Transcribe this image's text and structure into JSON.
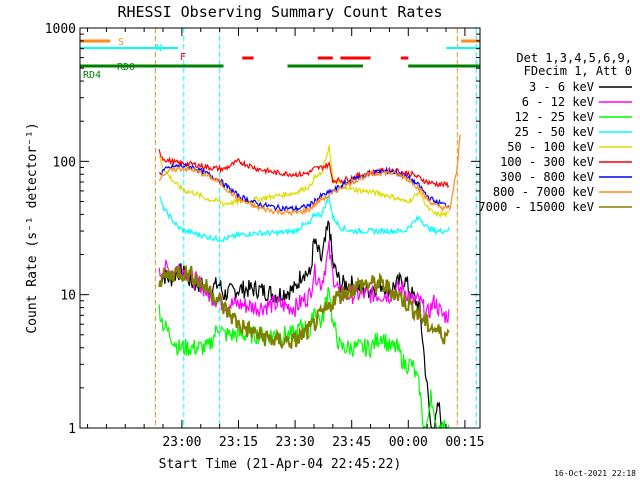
{
  "chart_data": {
    "type": "line",
    "title": "RHESSI Observing Summary Count Rates",
    "xlabel": "Start Time (21-Apr-04 22:45:22)",
    "ylabel": "Count Rate (s⁻¹ detector⁻¹)",
    "yscale": "log",
    "ylim": [
      1,
      1000
    ],
    "xlim_minutes": [
      -12,
      94
    ],
    "xticks": [
      {
        "t": 15,
        "label": "23:00"
      },
      {
        "t": 30,
        "label": "23:15"
      },
      {
        "t": 45,
        "label": "23:30"
      },
      {
        "t": 60,
        "label": "23:45"
      },
      {
        "t": 75,
        "label": "00:00"
      },
      {
        "t": 90,
        "label": "00:15"
      }
    ],
    "yticks": [
      {
        "v": 1,
        "label": "1"
      },
      {
        "v": 10,
        "label": "10"
      },
      {
        "v": 100,
        "label": "100"
      },
      {
        "v": 1000,
        "label": "1000"
      }
    ],
    "legend_header": [
      "Det 1,3,4,5,6,9,",
      "FDecim 1, Att 0"
    ],
    "legend_position": "right",
    "timestamp": "16-Oct-2021 22:18",
    "flag_bars": [
      {
        "label": "S",
        "color": "#ff8c1a",
        "segments": [
          [
            -12,
            -4
          ],
          [
            89,
            94
          ]
        ]
      },
      {
        "label": "N",
        "color": "#00ffff",
        "segments": [
          [
            -12,
            14
          ],
          [
            85,
            94
          ]
        ]
      },
      {
        "label": "F",
        "color": "#ff0000",
        "segments": [
          [
            31,
            34
          ],
          [
            51,
            55
          ],
          [
            57,
            65
          ],
          [
            73,
            75
          ]
        ]
      },
      {
        "label": "RD0",
        "color": "#008000",
        "segments": [
          [
            -12,
            26
          ],
          [
            43,
            63
          ],
          [
            75,
            94
          ]
        ]
      },
      {
        "label": "RD4",
        "color": "#008000",
        "segments": [
          [
            -12,
            26
          ],
          [
            43,
            63
          ],
          [
            75,
            94
          ]
        ]
      }
    ],
    "vlines": [
      {
        "t": 8,
        "color": "#ff8c1a"
      },
      {
        "t": 15.5,
        "color": "#00ffff"
      },
      {
        "t": 25,
        "color": "#00ffff"
      },
      {
        "t": 88,
        "color": "#ff8c1a"
      },
      {
        "t": 93,
        "color": "#00ffff"
      }
    ],
    "series": [
      {
        "name": "3 - 6 keV",
        "color": "#000000",
        "t": [
          -12,
          8,
          9,
          10,
          12,
          14,
          16,
          18,
          20,
          22,
          25,
          26,
          30,
          35,
          40,
          45,
          47,
          49,
          50,
          52,
          54,
          55,
          57,
          60,
          63,
          65,
          68,
          70,
          72,
          74,
          76,
          78,
          79,
          80,
          81,
          82,
          83,
          84,
          86,
          88
        ],
        "values": [
          null,
          null,
          12,
          14,
          13,
          15,
          14,
          12,
          12,
          11,
          12,
          10,
          11,
          11,
          10,
          11,
          15,
          14,
          25,
          18,
          35,
          17,
          12,
          12,
          11,
          11,
          12,
          11,
          12,
          13,
          10,
          8,
          4,
          2,
          1,
          1,
          1.5,
          1,
          null,
          null
        ]
      },
      {
        "name": "6 - 12 keV",
        "color": "#ff00ff",
        "t": [
          -12,
          8,
          9,
          10,
          12,
          14,
          16,
          18,
          20,
          22,
          25,
          26,
          30,
          35,
          40,
          45,
          47,
          49,
          50,
          52,
          54,
          55,
          57,
          60,
          63,
          65,
          68,
          70,
          72,
          74,
          76,
          78,
          80,
          82,
          84,
          86,
          88
        ],
        "values": [
          null,
          null,
          14,
          16,
          15,
          16,
          15,
          13,
          12,
          10,
          9,
          8.5,
          8.5,
          8,
          8.5,
          8,
          9,
          10,
          15,
          12,
          22,
          14,
          10,
          10,
          10,
          10,
          10,
          10,
          11,
          11,
          9,
          9,
          7,
          9,
          7,
          7,
          null
        ]
      },
      {
        "name": "12 - 25 keV",
        "color": "#00ff00",
        "t": [
          -12,
          8,
          9,
          10,
          12,
          14,
          16,
          18,
          20,
          22,
          25,
          26,
          30,
          35,
          40,
          45,
          47,
          49,
          50,
          52,
          54,
          55,
          57,
          60,
          63,
          65,
          68,
          70,
          72,
          74,
          76,
          78,
          79,
          80,
          81,
          82,
          84,
          86,
          88
        ],
        "values": [
          null,
          null,
          8,
          6,
          5,
          4,
          4,
          4,
          4,
          4,
          6,
          5,
          5,
          5,
          5,
          5,
          6,
          5,
          8,
          6,
          12,
          6,
          4,
          4,
          4,
          4,
          5,
          4,
          4,
          3,
          3,
          2,
          1,
          1,
          2,
          1,
          1,
          1,
          null
        ]
      },
      {
        "name": "25 - 50 keV",
        "color": "#00ffff",
        "t": [
          -12,
          8,
          9,
          10,
          12,
          14,
          16,
          18,
          20,
          22,
          25,
          26,
          30,
          35,
          40,
          45,
          47,
          49,
          50,
          52,
          54,
          55,
          57,
          60,
          63,
          65,
          68,
          70,
          72,
          74,
          76,
          78,
          80,
          82,
          84,
          86,
          88
        ],
        "values": [
          null,
          null,
          55,
          45,
          38,
          32,
          30,
          29,
          28,
          27,
          26,
          26,
          28,
          29,
          29,
          30,
          33,
          34,
          40,
          40,
          55,
          38,
          32,
          30,
          30,
          30,
          30,
          30,
          30,
          30,
          34,
          38,
          32,
          30,
          30,
          31,
          null
        ]
      },
      {
        "name": "50 - 100 keV",
        "color": "#dddd00",
        "t": [
          -12,
          8,
          9,
          10,
          12,
          14,
          16,
          18,
          20,
          22,
          25,
          26,
          30,
          35,
          40,
          45,
          47,
          49,
          50,
          52,
          54,
          55,
          57,
          60,
          63,
          65,
          68,
          70,
          72,
          74,
          76,
          78,
          80,
          82,
          84,
          86,
          88
        ],
        "values": [
          null,
          null,
          110,
          90,
          75,
          65,
          60,
          58,
          55,
          52,
          50,
          48,
          50,
          52,
          55,
          58,
          62,
          65,
          75,
          80,
          130,
          72,
          68,
          62,
          60,
          59,
          57,
          55,
          53,
          50,
          52,
          60,
          45,
          40,
          40,
          40,
          null
        ]
      },
      {
        "name": "100 - 300 keV",
        "color": "#ff0000",
        "t": [
          -12,
          8,
          9,
          10,
          12,
          14,
          16,
          18,
          20,
          22,
          25,
          26,
          30,
          35,
          40,
          45,
          47,
          49,
          50,
          52,
          54,
          55,
          57,
          60,
          63,
          65,
          68,
          70,
          72,
          74,
          76,
          78,
          80,
          82,
          84,
          86,
          88
        ],
        "values": [
          null,
          null,
          120,
          105,
          100,
          97,
          96,
          95,
          93,
          90,
          88,
          87,
          100,
          88,
          82,
          80,
          80,
          83,
          88,
          90,
          95,
          72,
          72,
          75,
          80,
          82,
          85,
          86,
          85,
          82,
          80,
          75,
          70,
          68,
          67,
          67,
          null
        ]
      },
      {
        "name": "300 - 800 keV",
        "color": "#0000ff",
        "t": [
          -12,
          8,
          9,
          10,
          12,
          14,
          16,
          18,
          20,
          22,
          25,
          26,
          30,
          35,
          40,
          45,
          47,
          49,
          50,
          52,
          54,
          55,
          57,
          60,
          63,
          65,
          68,
          70,
          72,
          74,
          76,
          78,
          80,
          82,
          84,
          86,
          88
        ],
        "values": [
          null,
          null,
          80,
          85,
          90,
          92,
          92,
          90,
          85,
          80,
          72,
          68,
          55,
          48,
          45,
          44,
          45,
          47,
          50,
          55,
          58,
          60,
          65,
          72,
          78,
          82,
          84,
          85,
          82,
          78,
          72,
          65,
          55,
          50,
          48,
          46,
          null
        ]
      },
      {
        "name": "800 - 7000 keV",
        "color": "#ff8c1a",
        "t": [
          -12,
          8,
          9,
          10,
          12,
          14,
          16,
          18,
          20,
          22,
          25,
          26,
          30,
          35,
          40,
          45,
          47,
          49,
          50,
          52,
          54,
          55,
          57,
          60,
          63,
          65,
          68,
          70,
          72,
          74,
          76,
          78,
          80,
          82,
          84,
          86,
          88,
          89
        ],
        "values": [
          null,
          null,
          75,
          80,
          85,
          88,
          88,
          86,
          82,
          77,
          70,
          65,
          52,
          45,
          42,
          41,
          42,
          44,
          47,
          52,
          55,
          58,
          63,
          70,
          76,
          80,
          82,
          82,
          80,
          76,
          70,
          62,
          52,
          47,
          45,
          44,
          90,
          200
        ]
      },
      {
        "name": "7000 - 15000 keV",
        "color": "#808000",
        "t": [
          -12,
          8,
          9,
          10,
          12,
          14,
          16,
          18,
          20,
          22,
          25,
          26,
          28,
          30,
          35,
          40,
          45,
          47,
          49,
          50,
          52,
          54,
          55,
          57,
          60,
          63,
          65,
          68,
          70,
          72,
          74,
          76,
          78,
          80,
          82,
          84,
          86,
          88
        ],
        "values": [
          null,
          null,
          13,
          13.5,
          14,
          15,
          14.5,
          14,
          12,
          11,
          9,
          8,
          7,
          6,
          5,
          4.5,
          4.5,
          5,
          5.5,
          6,
          7,
          8,
          9,
          10,
          11,
          12,
          12,
          12,
          11,
          10,
          9,
          8,
          7,
          6,
          5.5,
          5,
          5,
          null
        ]
      }
    ]
  }
}
